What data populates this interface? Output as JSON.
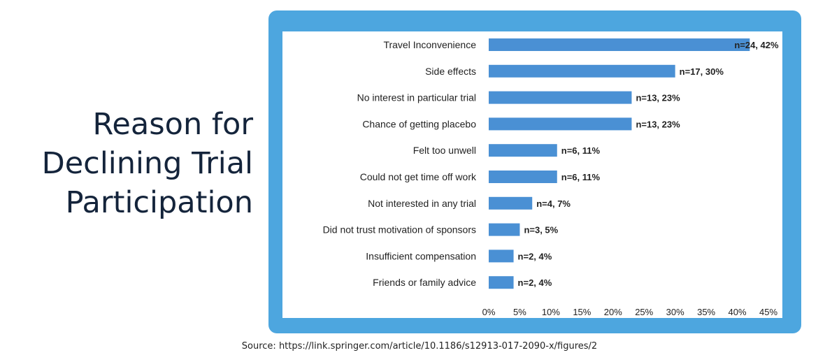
{
  "heading": {
    "lines": [
      "Reason for",
      "Declining Trial",
      "Participation"
    ]
  },
  "source": "Source: https://link.springer.com/article/10.1186/s12913-017-2090-x/figures/2",
  "colors": {
    "frame": "#4da6df",
    "bar": "#4a90d4",
    "title": "#14243b"
  },
  "chart_data": {
    "type": "bar",
    "orientation": "horizontal",
    "title": "",
    "xlabel": "",
    "ylabel": "",
    "categories": [
      "Travel Inconvenience",
      "Side effects",
      "No interest in particular trial",
      "Chance of getting placebo",
      "Felt too unwell",
      "Could not get time off work",
      "Not interested in any trial",
      "Did not trust motivation of sponsors",
      "Insufficient compensation",
      "Friends or family advice"
    ],
    "values": [
      42,
      30,
      23,
      23,
      11,
      11,
      7,
      5,
      4,
      4
    ],
    "data_labels": [
      "n=24, 42%",
      "n=17, 30%",
      "n=13, 23%",
      "n=13, 23%",
      "n=6, 11%",
      "n=6, 11%",
      "n=4, 7%",
      "n=3, 5%",
      "n=2, 4%",
      "n=2, 4%"
    ],
    "xlim": [
      0,
      45
    ],
    "xticks": [
      "0%",
      "5%",
      "10%",
      "15%",
      "20%",
      "25%",
      "30%",
      "35%",
      "40%",
      "45%"
    ],
    "grid": false,
    "legend": "none"
  }
}
